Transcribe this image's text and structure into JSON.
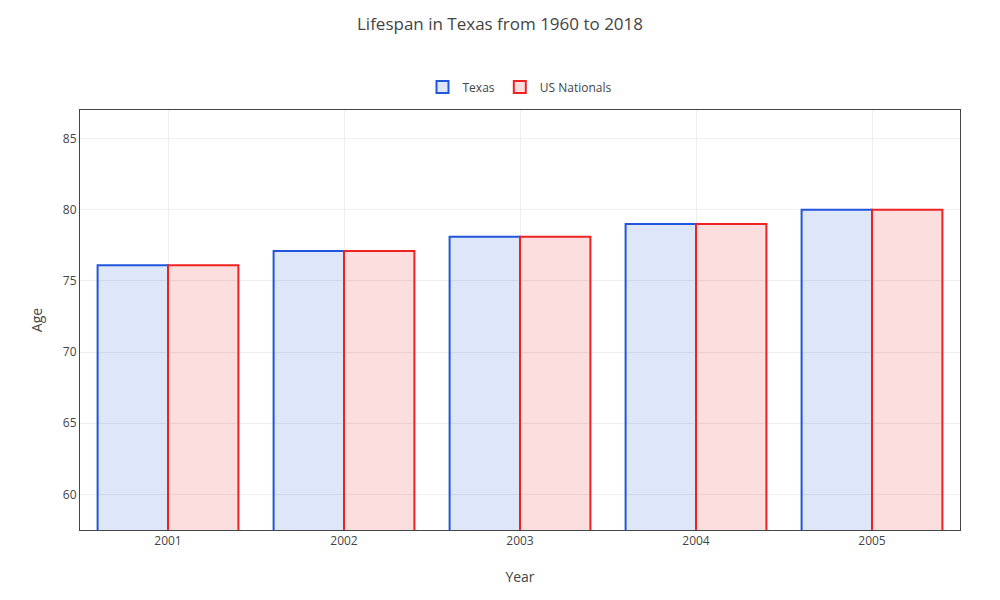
{
  "chart_data": {
    "type": "bar",
    "title": "Lifespan in Texas from 1960 to 2018",
    "xlabel": "Year",
    "ylabel": "Age",
    "categories": [
      "2001",
      "2002",
      "2003",
      "2004",
      "2005"
    ],
    "series": [
      {
        "name": "Texas",
        "color": "#2255dd",
        "values": [
          76.1,
          77.1,
          78.1,
          79.0,
          80.0
        ]
      },
      {
        "name": "US Nationals",
        "color": "#ee2222",
        "values": [
          76.1,
          77.1,
          78.1,
          79.0,
          80.0
        ]
      }
    ],
    "ylim": [
      57.5,
      87
    ],
    "yticks": [
      60,
      65,
      70,
      75,
      80,
      85
    ],
    "grid": true,
    "legend": "top"
  }
}
